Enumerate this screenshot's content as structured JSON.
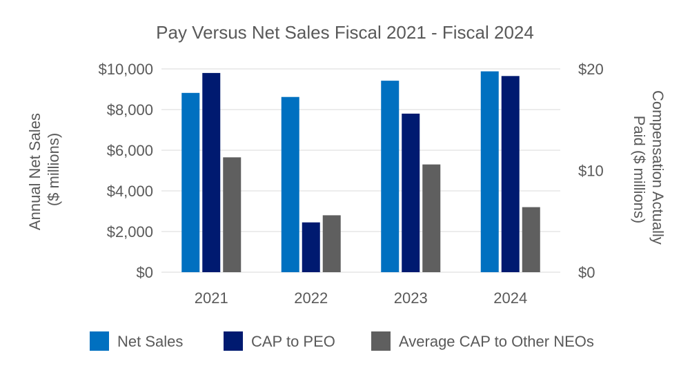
{
  "chart_data": {
    "type": "bar",
    "title": "Pay Versus Net Sales Fiscal 2021 - Fiscal 2024",
    "categories": [
      "2021",
      "2022",
      "2023",
      "2024"
    ],
    "y_left": {
      "label_lines": [
        "Annual Net Sales",
        "($ millions)"
      ],
      "range": [
        0,
        10000
      ],
      "ticks": [
        0,
        2000,
        4000,
        6000,
        8000,
        10000
      ],
      "tick_labels": [
        "$0",
        "$2,000",
        "$4,000",
        "$6,000",
        "$8,000",
        "$10,000"
      ]
    },
    "y_right": {
      "label_lines": [
        "Compensation Actually",
        "Paid ($ millions)"
      ],
      "range": [
        0,
        20
      ],
      "ticks": [
        0,
        10,
        20
      ],
      "tick_labels": [
        "$0",
        "$10",
        "$20"
      ]
    },
    "grid": true,
    "legend_position": "bottom",
    "series": [
      {
        "name": "Net Sales",
        "axis": "left",
        "color": "#0070c0",
        "values": [
          8820,
          8620,
          9420,
          9880
        ]
      },
      {
        "name": "CAP to PEO",
        "axis": "right",
        "color": "#001a70",
        "values": [
          19.6,
          4.9,
          15.6,
          19.3
        ]
      },
      {
        "name": "Average CAP to Other NEOs",
        "axis": "right",
        "color": "#5f5f5f",
        "values": [
          11.3,
          5.6,
          10.6,
          6.4
        ]
      }
    ]
  }
}
